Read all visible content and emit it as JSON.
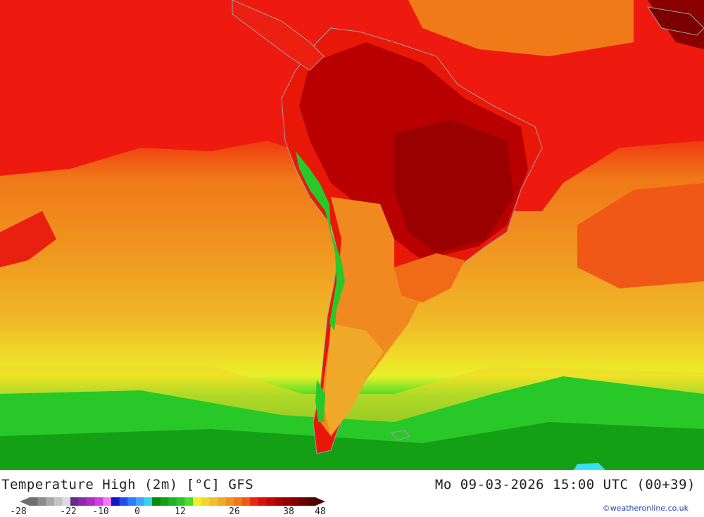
{
  "title": "Temperature High (2m) [°C] GFS",
  "datetime": "Mo 09-03-2026 15:00 UTC (00+39)",
  "credit": "©weatheronline.co.uk",
  "legend": {
    "unit": "°C",
    "ticks": [
      "-28",
      "-22",
      "-10",
      "0",
      "12",
      "26",
      "38",
      "48"
    ],
    "colors": [
      "#707070",
      "#8c8c8c",
      "#a8a8a8",
      "#c4c4c4",
      "#dcdcdc",
      "#6a2a8a",
      "#8e2aa8",
      "#b02ec8",
      "#d23ce0",
      "#f27af2",
      "#1414c8",
      "#1e4ef0",
      "#2e7cf8",
      "#3ea6f8",
      "#38d0f0",
      "#0a8c0a",
      "#14a014",
      "#1eb41e",
      "#28c828",
      "#50dc28",
      "#f0f028",
      "#f0d828",
      "#f0c028",
      "#f0a828",
      "#f09020",
      "#f07818",
      "#f05a10",
      "#e82808",
      "#d81010",
      "#c00808",
      "#a80404",
      "#940202",
      "#800000",
      "#6a0000",
      "#540000"
    ]
  },
  "colors": {
    "land_outline": "#a0a0a0",
    "ocean_north": "#e82828",
    "hot_core": "#b00000"
  }
}
